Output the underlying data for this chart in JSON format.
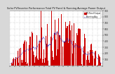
{
  "title": "Solar PV/Inverter Performance Total PV Panel & Running Average Power Output",
  "bar_color": "#cc0000",
  "avg_color": "#0000bb",
  "background_color": "#d8d8d8",
  "plot_bg": "#ffffff",
  "grid_color": "#aaaaaa",
  "legend_pv_label": "PV Panel Output",
  "legend_avg_label": "Running Avg",
  "ylim": [
    0,
    900
  ],
  "ytick_values": [
    100,
    200,
    300,
    400,
    500,
    600,
    700,
    800,
    900
  ],
  "n_points": 400,
  "seed": 17
}
